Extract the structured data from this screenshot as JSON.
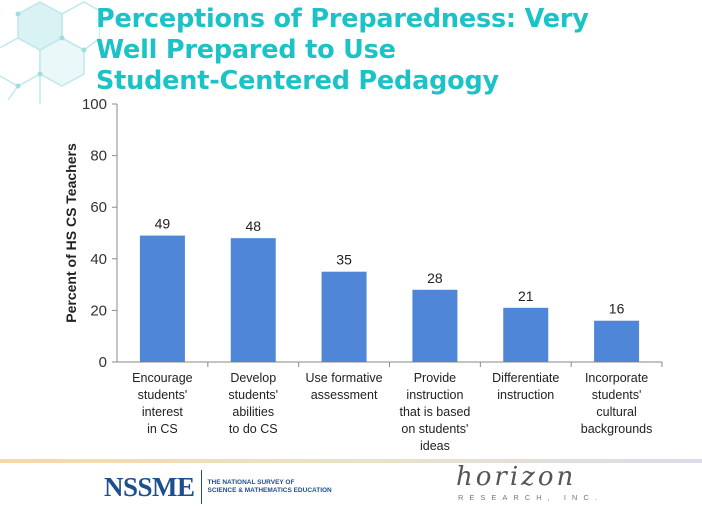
{
  "title_lines": [
    "Perceptions of Preparedness: Very",
    "Well Prepared to Use",
    "Student-Centered Pedagogy"
  ],
  "colors": {
    "title": "#1cc3c6",
    "bar": "#4f86d8",
    "axis": "#8a8a8a"
  },
  "chart_data": {
    "type": "bar",
    "categories": [
      [
        "Encourage",
        "students'",
        "interest",
        "in CS"
      ],
      [
        "Develop",
        "students'",
        "abilities",
        "to do CS"
      ],
      [
        "Use formative",
        "assessment"
      ],
      [
        "Provide",
        "instruction",
        "that is based",
        "on students'",
        "ideas"
      ],
      [
        "Differentiate",
        "instruction"
      ],
      [
        "Incorporate",
        "students'",
        "cultural",
        "backgrounds"
      ]
    ],
    "values": [
      49,
      48,
      35,
      28,
      21,
      16
    ],
    "ylabel": "Percent of HS CS Teachers",
    "ylim": [
      0,
      100
    ],
    "yticks": [
      0,
      20,
      40,
      60,
      80,
      100
    ],
    "grid": false,
    "legend": "none"
  },
  "footer": {
    "nssme_logo": "NSSME",
    "nssme_subtitle_lines": [
      "THE NATIONAL SURVEY OF",
      "SCIENCE & MATHEMATICS EDUCATION"
    ],
    "horizon_script": "horizon",
    "horizon_subtitle": "RESEARCH, INC."
  }
}
